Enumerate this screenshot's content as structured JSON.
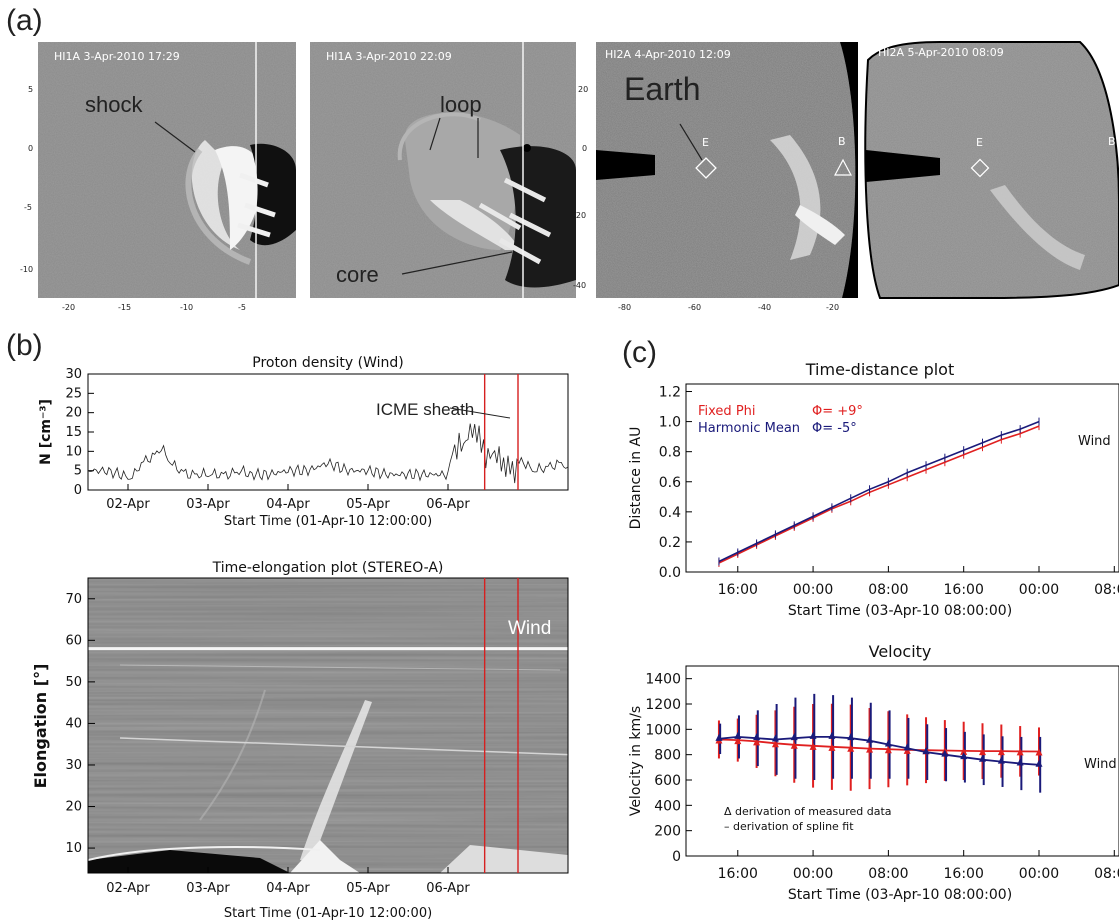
{
  "panel_labels": {
    "a": "(a)",
    "b": "(b)",
    "c": "(c)"
  },
  "images": [
    {
      "label": "HI1A   3-Apr-2010  17:29",
      "annotations": [
        "shock"
      ],
      "xticks": [
        "-20",
        "-15",
        "-10",
        "-5"
      ],
      "yticks": [
        "5",
        "0",
        "-5",
        "-10"
      ]
    },
    {
      "label": "HI1A   3-Apr-2010  22:09",
      "annotations": [
        "loop",
        "core"
      ]
    },
    {
      "label": "HI2A   4-Apr-2010  12:09",
      "annotations": [
        "Earth"
      ],
      "markers": [
        "E",
        "B"
      ],
      "xticks": [
        "-80",
        "-60",
        "-40",
        "-20"
      ],
      "yticks": [
        "20",
        "0",
        "-20",
        "-40"
      ]
    },
    {
      "label": "HI2A   5-Apr-2010  08:09",
      "markers": [
        "E",
        "B"
      ]
    }
  ],
  "colors": {
    "fixed_phi": "#e02020",
    "harmonic_mean": "#1a1a7a",
    "cme_window": "#d62020"
  },
  "chart_data": [
    {
      "type": "line",
      "title": "Proton density (Wind)",
      "ylabel": "N [cm⁻³]",
      "xlabel": "Start Time (01-Apr-10 12:00:00)",
      "x_ticks": [
        "02-Apr",
        "03-Apr",
        "04-Apr",
        "05-Apr",
        "06-Apr"
      ],
      "y_ticks": [
        "0",
        "5",
        "10",
        "15",
        "20",
        "25",
        "30"
      ],
      "ylim": [
        0,
        30
      ],
      "annotation": "ICME sheath",
      "x_hours": [
        0,
        5,
        10,
        12,
        14,
        16,
        18,
        20,
        22,
        24,
        26,
        28,
        30,
        34,
        38,
        42,
        46,
        48,
        54,
        60,
        66,
        72,
        78,
        84,
        90,
        96,
        102,
        108,
        110,
        112,
        114,
        116,
        118,
        120,
        122,
        124,
        126,
        128,
        130,
        132,
        134,
        138,
        142,
        144
      ],
      "values": [
        5,
        5,
        4,
        3,
        4,
        7,
        8,
        9,
        11,
        8,
        6,
        5,
        4,
        4,
        4,
        4,
        5,
        4,
        4,
        5,
        5,
        7,
        5,
        5,
        4,
        4,
        4,
        4,
        12,
        11,
        14,
        16,
        12,
        8,
        10,
        7,
        6,
        5,
        8,
        6,
        5,
        6,
        7,
        6
      ],
      "window_hours": [
        119,
        129
      ]
    },
    {
      "type": "heatmap",
      "title": "Time-elongation plot (STEREO-A)",
      "ylabel": "Elongation [°]",
      "xlabel": "Start Time (01-Apr-10 12:00:00)",
      "x_ticks": [
        "02-Apr",
        "03-Apr",
        "04-Apr",
        "05-Apr",
        "06-Apr"
      ],
      "y_ticks": [
        "10",
        "20",
        "30",
        "40",
        "50",
        "60",
        "70"
      ],
      "ylim": [
        4,
        75
      ],
      "annotation": "Wind",
      "wind_elongation": 58,
      "window_hours": [
        119,
        129
      ]
    },
    {
      "type": "line",
      "title": "Time-distance plot",
      "ylabel": "Distance in AU",
      "xlabel": "Start Time (03-Apr-10 08:00:00)",
      "x_ticks": [
        "16:00",
        "00:00",
        "08:00",
        "16:00",
        "00:00",
        "08:00"
      ],
      "y_ticks": [
        "0.0",
        "0.2",
        "0.4",
        "0.6",
        "0.8",
        "1.0",
        "1.2"
      ],
      "ylim": [
        0,
        1.25
      ],
      "legend": [
        "Fixed Phi",
        "Harmonic Mean"
      ],
      "legend_values": [
        "Φ= +9°",
        "Φ= -5°"
      ],
      "annotation": "Wind",
      "x_hours": [
        4,
        8,
        12,
        16,
        20,
        24,
        28,
        32,
        36,
        40,
        44,
        48,
        52,
        56,
        60,
        64,
        68,
        72
      ],
      "series": [
        {
          "name": "Fixed Phi",
          "values": [
            0.06,
            0.12,
            0.18,
            0.24,
            0.3,
            0.36,
            0.42,
            0.47,
            0.53,
            0.58,
            0.63,
            0.68,
            0.73,
            0.78,
            0.83,
            0.88,
            0.92,
            0.97
          ]
        },
        {
          "name": "Harmonic Mean",
          "values": [
            0.07,
            0.13,
            0.19,
            0.25,
            0.31,
            0.37,
            0.43,
            0.49,
            0.55,
            0.6,
            0.66,
            0.71,
            0.76,
            0.81,
            0.86,
            0.91,
            0.95,
            1.0
          ]
        }
      ]
    },
    {
      "type": "line",
      "title": "Velocity",
      "ylabel": "Velocity in km/s",
      "xlabel": "Start Time (03-Apr-10 08:00:00)",
      "x_ticks": [
        "16:00",
        "00:00",
        "08:00",
        "16:00",
        "00:00",
        "08:00"
      ],
      "y_ticks": [
        "0",
        "200",
        "400",
        "600",
        "800",
        "1000",
        "1200",
        "1400"
      ],
      "ylim": [
        0,
        1500
      ],
      "annotation": "Wind",
      "notes": [
        "Δ derivation of measured data",
        "– derivation of spline fit"
      ],
      "x_hours": [
        4,
        8,
        12,
        16,
        20,
        24,
        28,
        32,
        36,
        40,
        44,
        48,
        52,
        56,
        60,
        64,
        68,
        72
      ],
      "series": [
        {
          "name": "Fixed Phi",
          "values": [
            920,
            915,
            905,
            890,
            878,
            870,
            862,
            855,
            848,
            843,
            838,
            835,
            833,
            830,
            828,
            828,
            826,
            825
          ],
          "errors": [
            150,
            170,
            210,
            260,
            300,
            330,
            340,
            340,
            320,
            300,
            280,
            260,
            240,
            230,
            220,
            210,
            200,
            190
          ]
        },
        {
          "name": "Harmonic Mean",
          "values": [
            925,
            940,
            930,
            920,
            930,
            940,
            940,
            930,
            910,
            880,
            850,
            820,
            800,
            780,
            760,
            745,
            730,
            720
          ],
          "errors": [
            120,
            170,
            220,
            280,
            320,
            340,
            330,
            320,
            300,
            270,
            240,
            220,
            210,
            200,
            200,
            200,
            210,
            220
          ]
        }
      ]
    }
  ]
}
